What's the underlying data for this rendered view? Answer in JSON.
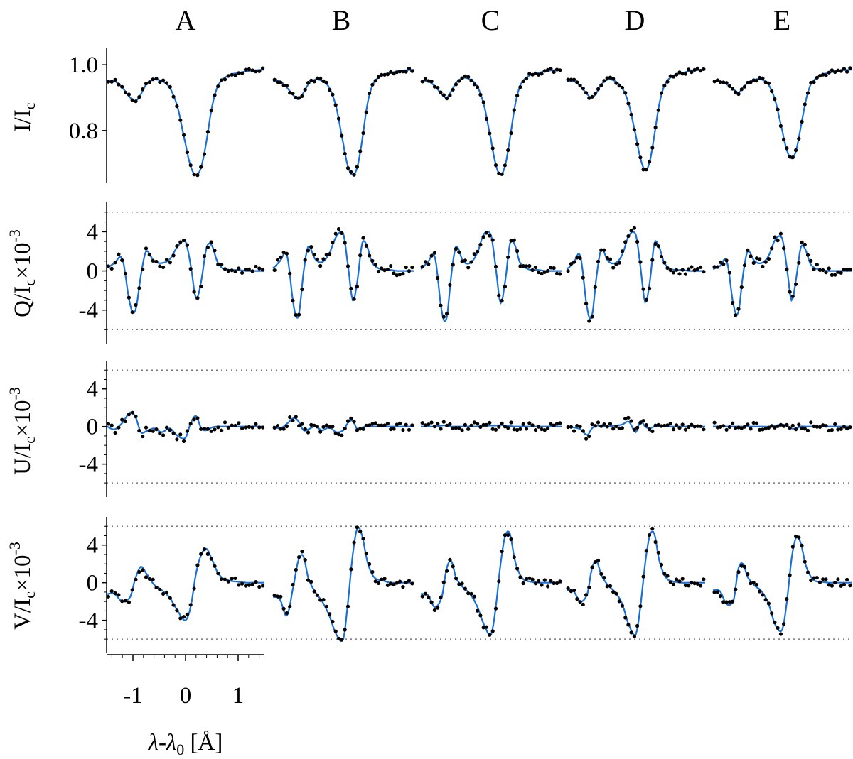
{
  "chart_data": {
    "type": "line",
    "description_free": true,
    "columns": [
      "A",
      "B",
      "C",
      "D",
      "E"
    ],
    "xaxis": {
      "label": "λ-λ",
      "label_sub": "0",
      "label_unit": " [Å]",
      "ticks": [
        -1,
        0,
        1
      ],
      "tick_labels": [
        "-1",
        "0",
        "1"
      ],
      "range": [
        -1.5,
        1.5
      ]
    },
    "rows": [
      {
        "id": "I",
        "ylabel": "I/I",
        "ylabel_sub": "c",
        "ylabel_rest": "",
        "ylabel_sup": "",
        "ylim": [
          0.64,
          1.05
        ],
        "ticks": [
          0.8,
          1.0
        ],
        "tick_labels": [
          "0.8",
          "1.0"
        ],
        "minor_ticks": [],
        "dotted_levels": []
      },
      {
        "id": "Q",
        "ylabel": "Q/I",
        "ylabel_sub": "c",
        "ylabel_rest": "×10",
        "ylabel_sup": "-3",
        "ylim": [
          -7.5,
          7
        ],
        "ticks": [
          -4,
          0,
          4
        ],
        "tick_labels": [
          "-4",
          "0",
          "4"
        ],
        "minor_ticks": [
          -6,
          -5,
          -3,
          -2,
          -1,
          1,
          2,
          3,
          5,
          6
        ],
        "dotted_levels": [
          6,
          -6
        ]
      },
      {
        "id": "U",
        "ylabel": "U/I",
        "ylabel_sub": "c",
        "ylabel_rest": "×10",
        "ylabel_sup": "-3",
        "ylim": [
          -7.5,
          7
        ],
        "ticks": [
          -4,
          0,
          4
        ],
        "tick_labels": [
          "-4",
          "0",
          "4"
        ],
        "minor_ticks": [
          -6,
          -5,
          -3,
          -2,
          -1,
          1,
          2,
          3,
          5,
          6
        ],
        "dotted_levels": [
          6,
          -6
        ]
      },
      {
        "id": "V",
        "ylabel": "V/I",
        "ylabel_sub": "c",
        "ylabel_rest": "×10",
        "ylabel_sup": "-3",
        "ylim": [
          -7.5,
          7
        ],
        "ticks": [
          -4,
          0,
          4
        ],
        "tick_labels": [
          "-4",
          "0",
          "4"
        ],
        "minor_ticks": [
          -6,
          -5,
          -3,
          -2,
          -1,
          1,
          2,
          3,
          5,
          6
        ],
        "dotted_levels": [
          6,
          -6
        ]
      }
    ],
    "series_style": {
      "fit": {
        "name": "fit",
        "color": "#1a6fd4"
      },
      "observed": {
        "name": "observed",
        "color": "#000000"
      }
    },
    "x_sample": [
      -1.5,
      -1.35,
      -1.2,
      -1.05,
      -0.95,
      -0.85,
      -0.75,
      -0.6,
      -0.45,
      -0.3,
      -0.15,
      0.0,
      0.1,
      0.2,
      0.3,
      0.4,
      0.5,
      0.6,
      0.7,
      0.85,
      1.0,
      1.15,
      1.3,
      1.5
    ],
    "panels": {
      "I": {
        "A": {
          "fit": [
            0.95,
            0.95,
            0.93,
            0.9,
            0.89,
            0.91,
            0.94,
            0.955,
            0.95,
            0.93,
            0.87,
            0.76,
            0.69,
            0.665,
            0.69,
            0.77,
            0.87,
            0.93,
            0.955,
            0.97,
            0.975,
            0.98,
            0.983,
            0.985
          ]
        },
        "B": {
          "fit": [
            0.95,
            0.95,
            0.93,
            0.905,
            0.895,
            0.915,
            0.94,
            0.955,
            0.95,
            0.93,
            0.87,
            0.76,
            0.69,
            0.665,
            0.69,
            0.77,
            0.87,
            0.93,
            0.955,
            0.97,
            0.975,
            0.98,
            0.983,
            0.985
          ]
        },
        "C": {
          "fit": [
            0.95,
            0.95,
            0.935,
            0.91,
            0.9,
            0.92,
            0.945,
            0.96,
            0.955,
            0.935,
            0.875,
            0.77,
            0.695,
            0.665,
            0.695,
            0.775,
            0.87,
            0.93,
            0.955,
            0.97,
            0.975,
            0.98,
            0.983,
            0.985
          ]
        },
        "D": {
          "fit": [
            0.95,
            0.95,
            0.935,
            0.91,
            0.9,
            0.915,
            0.94,
            0.955,
            0.95,
            0.93,
            0.88,
            0.785,
            0.715,
            0.68,
            0.705,
            0.785,
            0.875,
            0.93,
            0.955,
            0.97,
            0.975,
            0.98,
            0.983,
            0.985
          ]
        },
        "E": {
          "fit": [
            0.95,
            0.95,
            0.94,
            0.925,
            0.915,
            0.93,
            0.945,
            0.955,
            0.955,
            0.94,
            0.89,
            0.8,
            0.74,
            0.715,
            0.74,
            0.81,
            0.885,
            0.935,
            0.955,
            0.97,
            0.975,
            0.98,
            0.983,
            0.985
          ]
        }
      },
      "Q": {
        "A": {
          "fit": [
            0.3,
            0.8,
            1.2,
            -3.5,
            -4.0,
            -0.5,
            2.0,
            1.0,
            0.8,
            1.2,
            2.5,
            3.0,
            0.5,
            -2.8,
            -1.0,
            2.4,
            2.6,
            1.0,
            0.3,
            0.1,
            0.1,
            0.0,
            0.0,
            0.0
          ]
        },
        "B": {
          "fit": [
            0.3,
            1.0,
            1.6,
            -3.8,
            -4.5,
            -0.2,
            2.5,
            1.2,
            0.9,
            1.8,
            3.5,
            3.8,
            0.5,
            -3.0,
            -1.0,
            2.8,
            2.6,
            1.0,
            0.4,
            0.1,
            0.1,
            0.0,
            0.0,
            0.0
          ]
        },
        "C": {
          "fit": [
            0.2,
            0.9,
            1.4,
            -4.2,
            -4.8,
            -0.4,
            2.5,
            1.0,
            0.8,
            1.8,
            3.8,
            3.6,
            0.2,
            -3.3,
            -1.0,
            2.8,
            2.7,
            1.0,
            0.4,
            0.1,
            0.1,
            0.0,
            0.0,
            0.0
          ]
        },
        "D": {
          "fit": [
            0.2,
            0.8,
            1.5,
            -3.9,
            -4.6,
            -0.5,
            2.2,
            1.0,
            0.8,
            1.6,
            3.6,
            3.7,
            0.4,
            -3.2,
            -1.2,
            2.8,
            2.5,
            1.0,
            0.3,
            0.1,
            0.1,
            0.0,
            0.0,
            0.0
          ]
        },
        "E": {
          "fit": [
            0.2,
            0.5,
            1.0,
            -3.6,
            -4.2,
            -0.4,
            2.0,
            1.0,
            0.8,
            1.5,
            3.2,
            3.3,
            0.3,
            -3.0,
            -0.8,
            2.4,
            2.2,
            0.8,
            0.3,
            0.1,
            0.0,
            0.0,
            0.0,
            0.0
          ]
        }
      },
      "U": {
        "A": {
          "fit": [
            0.0,
            -0.3,
            0.4,
            1.5,
            1.0,
            -0.6,
            -0.5,
            -0.2,
            -0.6,
            -0.2,
            -1.0,
            -1.2,
            0.4,
            1.1,
            -0.2,
            -0.4,
            -0.1,
            0.0,
            0.0,
            0.0,
            0.0,
            0.0,
            0.0,
            0.0
          ]
        },
        "B": {
          "fit": [
            0.0,
            -0.2,
            0.3,
            0.9,
            0.5,
            -0.4,
            -0.3,
            0.0,
            -0.4,
            -0.1,
            -0.6,
            -0.4,
            0.4,
            0.6,
            -0.3,
            -0.1,
            0.0,
            0.0,
            0.0,
            0.0,
            0.0,
            0.0,
            0.0,
            0.0
          ]
        },
        "C": {
          "fit": [
            0.0,
            0.0,
            0.0,
            0.1,
            0.1,
            0.0,
            0.0,
            0.0,
            0.0,
            0.0,
            0.05,
            0.1,
            0.1,
            0.15,
            0.1,
            0.05,
            0.0,
            0.0,
            0.0,
            0.0,
            0.0,
            0.0,
            0.0,
            0.0
          ]
        },
        "D": {
          "fit": [
            0.0,
            -0.1,
            -0.3,
            -0.9,
            -0.2,
            0.1,
            0.0,
            0.0,
            0.1,
            0.2,
            0.5,
            -0.6,
            0.6,
            0.0,
            -0.2,
            0.0,
            0.0,
            0.0,
            0.0,
            0.0,
            0.0,
            0.0,
            0.0,
            0.0
          ]
        },
        "E": {
          "fit": [
            0.0,
            0.0,
            0.0,
            0.0,
            0.0,
            0.0,
            0.0,
            0.0,
            0.0,
            0.0,
            0.1,
            0.2,
            0.1,
            -0.2,
            -0.2,
            0.0,
            0.0,
            0.0,
            0.0,
            0.0,
            0.0,
            0.0,
            0.0,
            0.0
          ]
        }
      },
      "V": {
        "A": {
          "fit": [
            -1.2,
            -1.2,
            -2.0,
            -1.5,
            0.5,
            1.7,
            1.0,
            -0.2,
            -0.8,
            -1.6,
            -3.0,
            -4.0,
            -2.5,
            1.0,
            3.0,
            3.6,
            2.5,
            1.2,
            0.5,
            0.2,
            0.1,
            0.0,
            0.0,
            0.0
          ]
        },
        "B": {
          "fit": [
            -1.5,
            -1.8,
            -3.5,
            0.0,
            2.5,
            2.8,
            0.5,
            -1.0,
            -2.0,
            -3.5,
            -5.5,
            -6.0,
            -2.0,
            3.0,
            5.8,
            5.0,
            2.5,
            1.0,
            0.4,
            0.2,
            0.0,
            0.0,
            0.0,
            0.0
          ]
        },
        "C": {
          "fit": [
            -1.2,
            -1.3,
            -2.6,
            -1.5,
            1.5,
            2.3,
            0.5,
            -0.5,
            -1.2,
            -2.5,
            -4.5,
            -5.5,
            -2.5,
            2.0,
            5.0,
            5.2,
            2.5,
            1.0,
            0.3,
            0.1,
            0.0,
            0.0,
            0.0,
            0.0
          ]
        },
        "D": {
          "fit": [
            -0.8,
            -0.9,
            -2.0,
            -1.2,
            1.5,
            2.3,
            0.8,
            -0.3,
            -1.0,
            -2.2,
            -4.5,
            -5.5,
            -2.5,
            2.0,
            5.0,
            5.2,
            2.5,
            1.0,
            0.3,
            0.1,
            0.0,
            0.0,
            0.0,
            0.0
          ]
        },
        "E": {
          "fit": [
            -0.8,
            -0.9,
            -2.3,
            -1.8,
            1.5,
            2.0,
            0.6,
            -0.3,
            -0.9,
            -2.2,
            -4.5,
            -5.0,
            -2.0,
            2.5,
            4.8,
            4.2,
            2.0,
            0.8,
            0.2,
            0.1,
            0.0,
            0.0,
            0.0,
            0.0
          ]
        }
      }
    }
  }
}
